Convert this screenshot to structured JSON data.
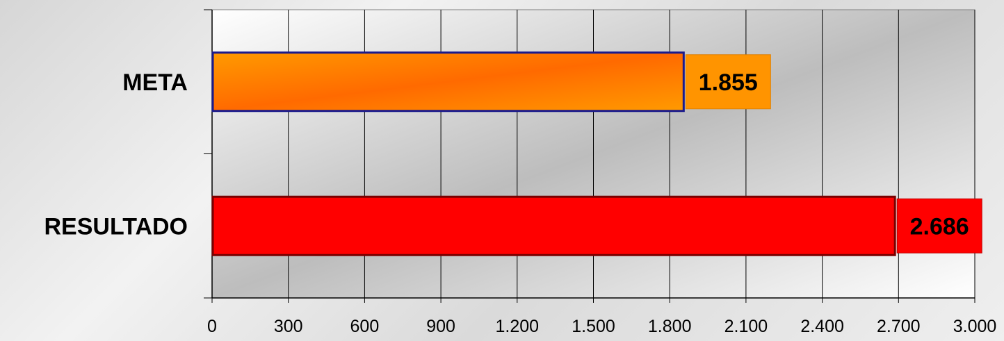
{
  "chart_data": {
    "type": "bar",
    "orientation": "horizontal",
    "title": "",
    "xlabel": "",
    "ylabel": "",
    "categories": [
      "META",
      "RESULTADO"
    ],
    "values": [
      1855,
      2686
    ],
    "value_labels": [
      "1.855",
      "2.686"
    ],
    "xlim": [
      0,
      3000
    ],
    "x_ticks": [
      0,
      300,
      600,
      900,
      1200,
      1500,
      1800,
      2100,
      2400,
      2700,
      3000
    ],
    "x_tick_labels": [
      "0",
      "300",
      "600",
      "900",
      "1.200",
      "1.500",
      "1.800",
      "2.100",
      "2.400",
      "2.700",
      "3.000"
    ],
    "grid": "vertical",
    "legend": "none",
    "colors": {
      "META": "#ff7a00",
      "RESULTADO": "#ff0000",
      "META_border": "#1a1a8c",
      "RESULTADO_border": "#7a0000",
      "META_label_bg": "#ff9400",
      "RESULTADO_label_bg": "#ff0000"
    }
  }
}
